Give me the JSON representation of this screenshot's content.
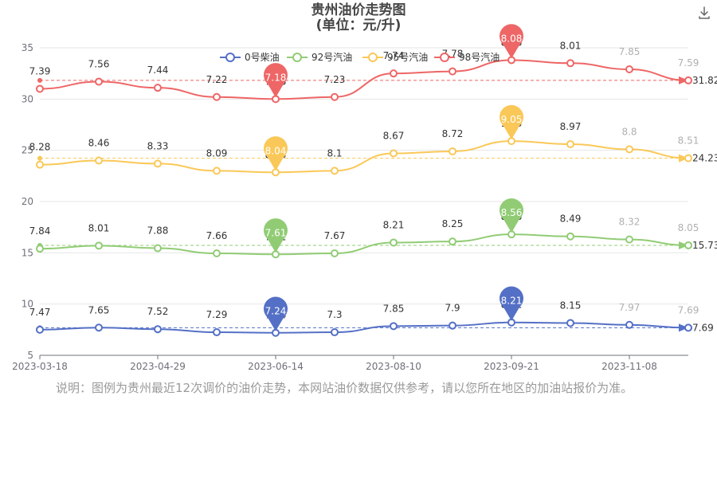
{
  "title": {
    "line1": "贵州油价走势图",
    "line2": "(单位：元/升)"
  },
  "toolbar": {
    "download_icon": "download-icon"
  },
  "note": "说明：图例为贵州最近12次调价的油价走势，本网站油价数据仅供参考，请以您所在地区的加油站报价为准。",
  "chart_data": {
    "type": "line",
    "x": [
      "2023-03-18",
      "2023-04-08",
      "2023-04-29",
      "2023-05-20",
      "2023-06-14",
      "2023-07-12",
      "2023-08-10",
      "2023-08-31",
      "2023-09-21",
      "2023-10-17",
      "2023-11-08",
      "2023-11-30"
    ],
    "xticks": [
      "2023-03-18",
      "2023-04-29",
      "2023-06-14",
      "2023-08-10",
      "2023-09-21",
      "2023-11-08"
    ],
    "ylim": [
      5,
      35
    ],
    "yticks": [
      5,
      10,
      15,
      20,
      25,
      30,
      35
    ],
    "grid": true,
    "legend_position": "top-center",
    "series": [
      {
        "name": "0号柴油",
        "color": "#5470c6",
        "labels": [
          7.47,
          7.65,
          7.52,
          7.29,
          7.24,
          7.3,
          7.85,
          7.9,
          8.21,
          8.15,
          7.97,
          7.69
        ],
        "plot": [
          7.5,
          7.7,
          7.55,
          7.25,
          7.2,
          7.25,
          7.85,
          7.9,
          8.21,
          8.15,
          7.97,
          7.69
        ],
        "min_label": 7.24,
        "max_label": 8.21,
        "avg_label": 7.69
      },
      {
        "name": "92号汽油",
        "color": "#91cc75",
        "labels": [
          7.84,
          8.01,
          7.88,
          7.66,
          7.61,
          7.67,
          8.21,
          8.25,
          8.56,
          8.49,
          8.32,
          8.05
        ],
        "plot": [
          15.4,
          15.7,
          15.45,
          14.95,
          14.85,
          14.95,
          16.0,
          16.1,
          16.8,
          16.6,
          16.3,
          15.73
        ],
        "min_label": 7.61,
        "max_label": 8.56,
        "avg_label": 15.73
      },
      {
        "name": "95号汽油",
        "color": "#fac858",
        "labels": [
          8.28,
          8.46,
          8.33,
          8.09,
          8.04,
          8.1,
          8.67,
          8.72,
          9.05,
          8.97,
          8.8,
          8.51
        ],
        "plot": [
          23.6,
          24.0,
          23.7,
          23.0,
          22.85,
          23.0,
          24.7,
          24.9,
          25.9,
          25.6,
          25.1,
          24.23
        ],
        "min_label": 8.04,
        "max_label": 9.05,
        "avg_label": 24.23
      },
      {
        "name": "98号汽油",
        "color": "#ee6666",
        "labels": [
          7.39,
          7.56,
          7.44,
          7.22,
          7.18,
          7.23,
          7.74,
          7.78,
          8.08,
          8.01,
          7.85,
          7.59
        ],
        "plot": [
          31.0,
          31.7,
          31.1,
          30.2,
          30.0,
          30.2,
          32.5,
          32.7,
          33.8,
          33.5,
          32.9,
          31.82
        ],
        "min_label": 7.18,
        "max_label": 8.08,
        "avg_label": 31.82
      }
    ]
  }
}
